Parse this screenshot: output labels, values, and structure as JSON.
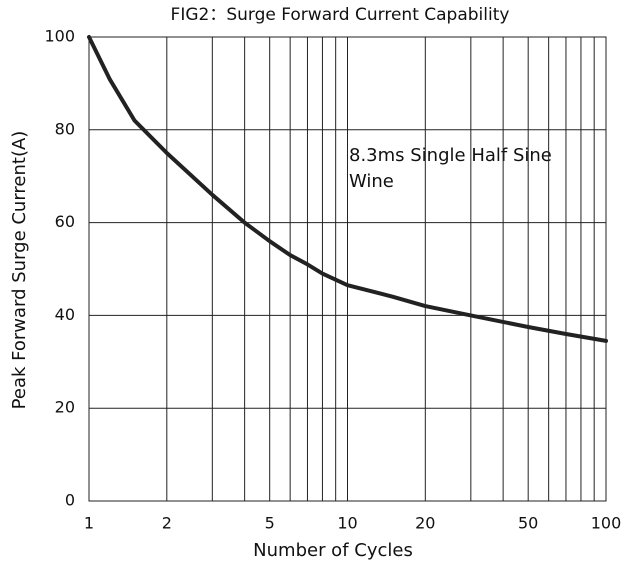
{
  "chart_data": {
    "type": "line",
    "title": "FIG2：Surge Forward Current Capability",
    "xlabel": "Number of Cycles",
    "ylabel": "Peak Forward Surge Current(A)",
    "annotation": [
      "8.3ms Single  Half Sine",
      "Wine"
    ],
    "x": [
      1,
      1.2,
      1.5,
      2,
      3,
      4,
      5,
      6,
      7,
      8,
      10,
      15,
      20,
      30,
      50,
      70,
      100
    ],
    "values": [
      100,
      91,
      82,
      75,
      66,
      60,
      56,
      53,
      51,
      49,
      46.5,
      44,
      42,
      40,
      37.5,
      36,
      34.5
    ],
    "color": "#222222",
    "xscale": "log",
    "xlim": [
      1,
      100
    ],
    "ylim": [
      0,
      100
    ],
    "xticks": [
      1,
      2,
      5,
      10,
      20,
      50,
      100
    ],
    "xgrid": [
      3,
      4,
      6,
      7,
      8,
      9,
      30,
      40,
      60,
      70,
      80,
      90
    ],
    "yticks": [
      0,
      20,
      40,
      60,
      80,
      100
    ],
    "grid": true
  }
}
